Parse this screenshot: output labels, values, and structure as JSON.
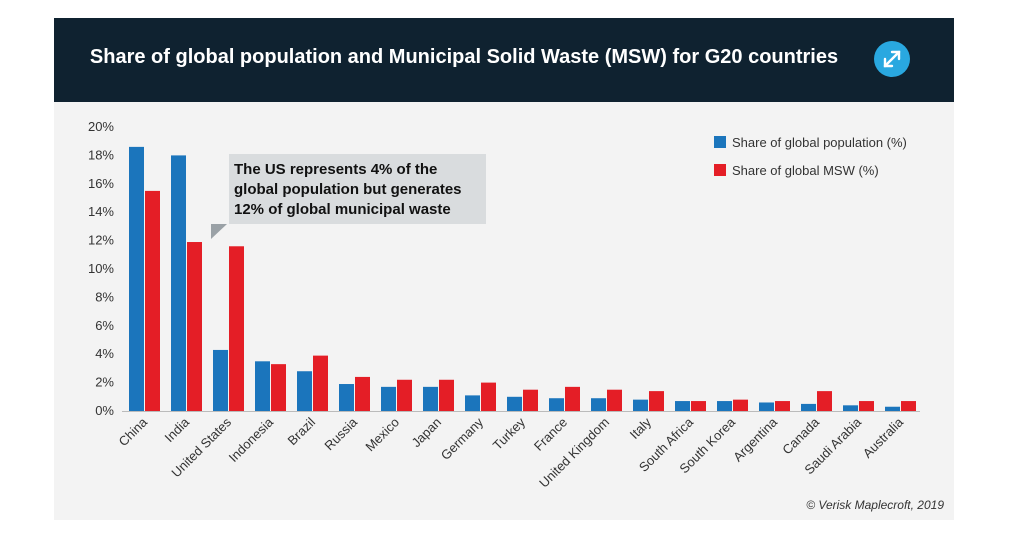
{
  "header": {
    "title": "Share of global population and Municipal Solid Waste (MSW) for G20 countries",
    "expand_icon": "expand-arrows-icon",
    "background": "#0f2230",
    "icon_color": "#29a8e0"
  },
  "chart_data": {
    "type": "bar",
    "categories": [
      "China",
      "India",
      "United States",
      "Indonesia",
      "Brazil",
      "Russia",
      "Mexico",
      "Japan",
      "Germany",
      "Turkey",
      "France",
      "United Kingdom",
      "Italy",
      "South Africa",
      "South Korea",
      "Argentina",
      "Canada",
      "Saudi Arabia",
      "Australia"
    ],
    "series": [
      {
        "name": "Share of global population (%)",
        "color": "#1b75bc",
        "values": [
          18.6,
          18.0,
          4.3,
          3.5,
          2.8,
          1.9,
          1.7,
          1.7,
          1.1,
          1.0,
          0.9,
          0.9,
          0.8,
          0.7,
          0.7,
          0.6,
          0.5,
          0.4,
          0.3
        ]
      },
      {
        "name": "Share of global MSW (%)",
        "color": "#e41e26",
        "values": [
          15.5,
          11.9,
          11.6,
          3.3,
          3.9,
          2.4,
          2.2,
          2.2,
          2.0,
          1.5,
          1.7,
          1.5,
          1.4,
          0.7,
          0.8,
          0.7,
          1.4,
          0.7,
          0.7
        ]
      }
    ],
    "yticks": [
      "0%",
      "2%",
      "4%",
      "6%",
      "8%",
      "10%",
      "12%",
      "14%",
      "16%",
      "18%",
      "20%"
    ],
    "ylim": [
      0,
      20
    ],
    "grid": false,
    "legend": "top-right",
    "annotation": {
      "lines": [
        "The US represents 4% of the",
        "global population but generates",
        "12% of global municipal waste"
      ],
      "points_to": "United States"
    },
    "credit": "© Verisk Maplecroft, 2019"
  }
}
